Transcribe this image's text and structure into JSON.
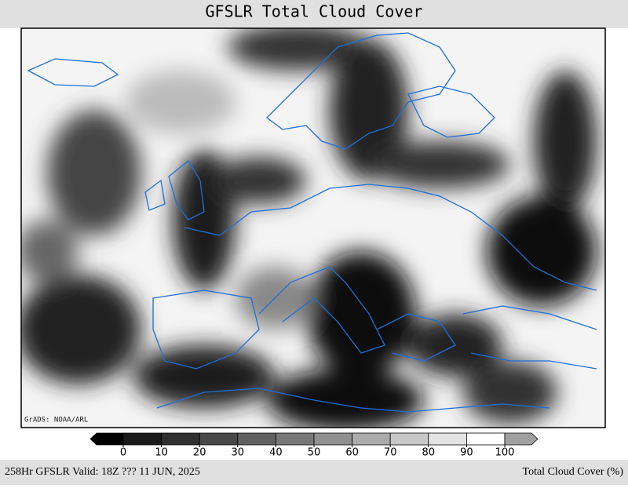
{
  "title": "GFSLR Total Cloud Cover",
  "credit": "GrADS: NOAA/ARL",
  "colorbar": {
    "ticks": [
      0,
      10,
      20,
      30,
      40,
      50,
      60,
      70,
      80,
      90,
      100
    ],
    "colors": [
      "#000000",
      "#1a1a1a",
      "#303030",
      "#484848",
      "#606060",
      "#787878",
      "#909090",
      "#ababab",
      "#c8c8c8",
      "#e4e4e4",
      "#ffffff",
      "#a0a0a0"
    ]
  },
  "footer": {
    "left": "258Hr GFSLR Valid: 18Z ??? 11 JUN, 2025",
    "right": "Total Cloud Cover (%)"
  }
}
